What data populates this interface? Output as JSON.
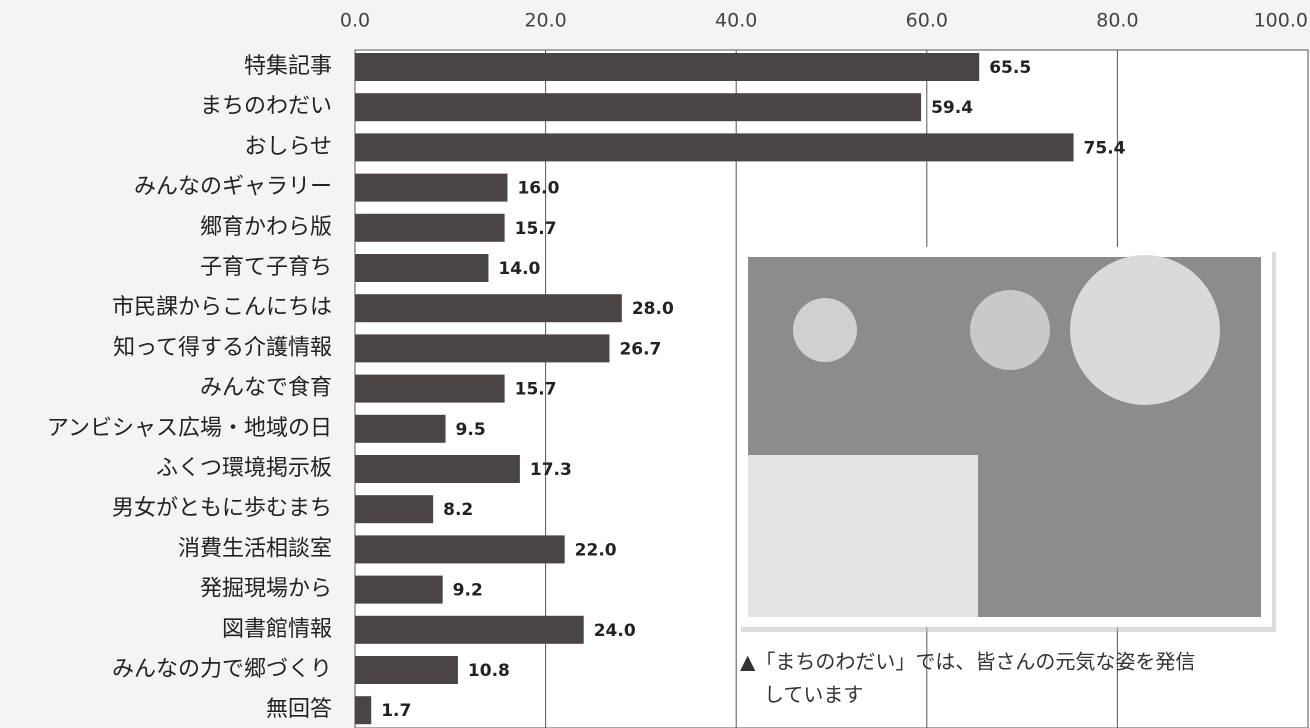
{
  "chart_data": {
    "type": "bar",
    "orientation": "horizontal",
    "categories": [
      "特集記事",
      "まちのわだい",
      "おしらせ",
      "みんなのギャラリー",
      "郷育かわら版",
      "子育て子育ち",
      "市民課からこんにちは",
      "知って得する介護情報",
      "みんなで食育",
      "アンビシャス広場・地域の日",
      "ふくつ環境掲示板",
      "男女がともに歩むまち",
      "消費生活相談室",
      "発掘現場から",
      "図書館情報",
      "みんなの力で郷づくり",
      "無回答"
    ],
    "values": [
      65.5,
      59.4,
      75.4,
      16.0,
      15.7,
      14.0,
      28.0,
      26.7,
      15.7,
      9.5,
      17.3,
      8.2,
      22.0,
      9.2,
      24.0,
      10.8,
      1.7
    ],
    "value_labels": [
      "65.5",
      "59.4",
      "75.4",
      "16.0",
      "15.7",
      "14.0",
      "28.0",
      "26.7",
      "15.7",
      "9.5",
      "17.3",
      "8.2",
      "22.0",
      "9.2",
      "24.0",
      "10.8",
      "1.7"
    ],
    "color": "#4a4444",
    "xlim": [
      0,
      100
    ],
    "xticks": [
      {
        "value": 0,
        "label": "0.0"
      },
      {
        "value": 20,
        "label": "20.0"
      },
      {
        "value": 40,
        "label": "40.0"
      },
      {
        "value": 60,
        "label": "60.0"
      },
      {
        "value": 80,
        "label": "80.0"
      },
      {
        "value": 100,
        "label": "100.0"
      }
    ],
    "grid": true,
    "annotations": [
      "▲「まちのわだい」では、皆さんの元気な姿を発信",
      "しています"
    ]
  }
}
